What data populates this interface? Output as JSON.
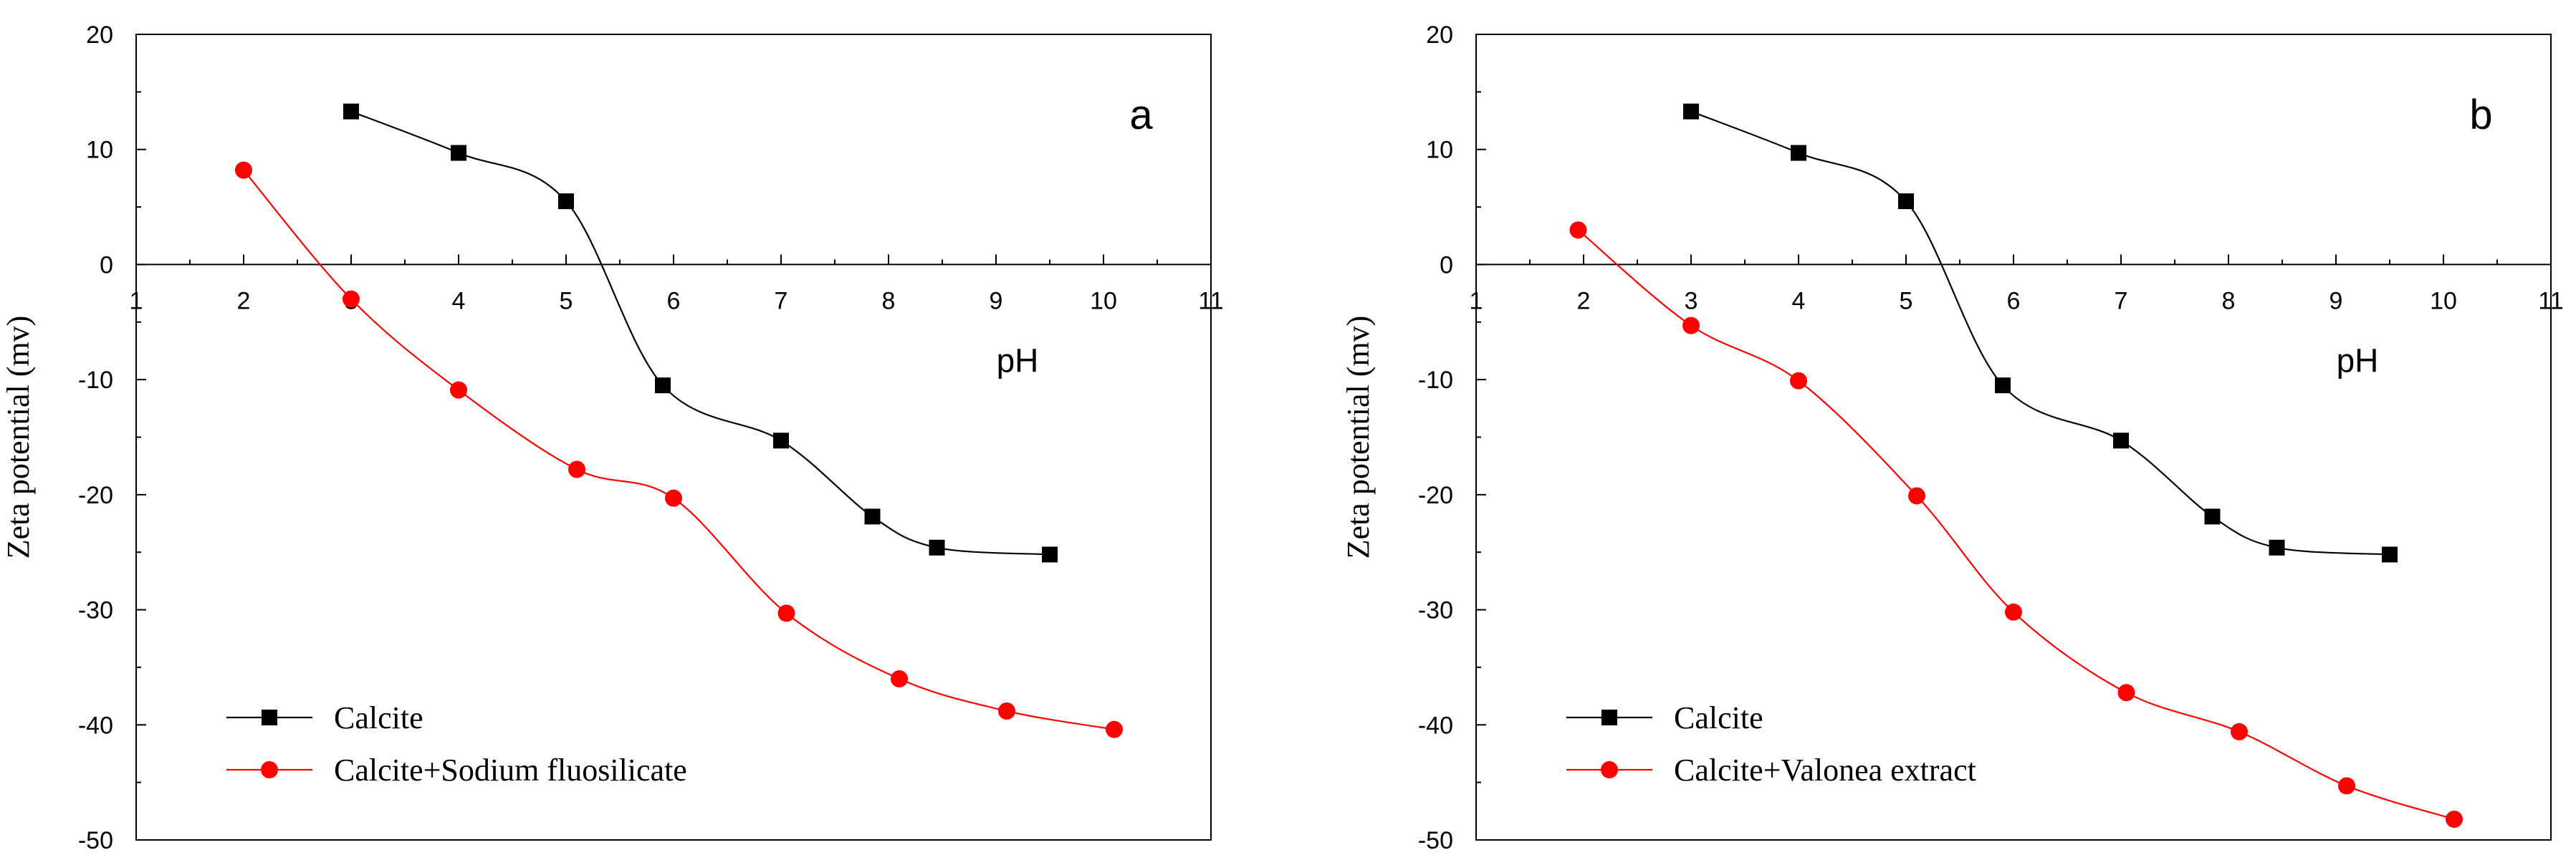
{
  "chart_data": [
    {
      "type": "line",
      "panel_label": "a",
      "xlabel": "pH",
      "ylabel": "Zeta potential (mv)",
      "xlim": [
        1,
        11
      ],
      "ylim": [
        -50,
        20
      ],
      "x_ticks": [
        "1",
        "2",
        "3",
        "4",
        "5",
        "6",
        "7",
        "8",
        "9",
        "10",
        "11"
      ],
      "y_ticks": [
        "20",
        "10",
        "0",
        "-10",
        "-20",
        "-30",
        "-40",
        "-50"
      ],
      "legend_position": "bottom-left",
      "series": [
        {
          "name": "Calcite",
          "color": "#000000",
          "marker": "square",
          "x": [
            3.0,
            4.0,
            5.0,
            5.9,
            7.0,
            7.85,
            8.45,
            9.5
          ],
          "y": [
            13.3,
            9.7,
            5.5,
            -10.5,
            -15.3,
            -21.9,
            -24.6,
            -25.2
          ]
        },
        {
          "name": "Calcite+Sodium fluosilicate",
          "color": "#ff0000",
          "marker": "circle",
          "x": [
            2.0,
            3.0,
            4.0,
            5.1,
            6.0,
            7.05,
            8.1,
            9.1,
            10.1
          ],
          "y": [
            8.2,
            -3.0,
            -10.9,
            -17.8,
            -20.3,
            -30.3,
            -36.0,
            -38.8,
            -40.4
          ]
        }
      ]
    },
    {
      "type": "line",
      "panel_label": "b",
      "xlabel": "pH",
      "ylabel": "Zeta potential (mv)",
      "xlim": [
        1,
        11
      ],
      "ylim": [
        -50,
        20
      ],
      "x_ticks": [
        "1",
        "2",
        "3",
        "4",
        "5",
        "6",
        "7",
        "8",
        "9",
        "10",
        "11"
      ],
      "y_ticks": [
        "20",
        "10",
        "0",
        "-10",
        "-20",
        "-30",
        "-40",
        "-50"
      ],
      "legend_position": "bottom-left",
      "series": [
        {
          "name": "Calcite",
          "color": "#000000",
          "marker": "square",
          "x": [
            3.0,
            4.0,
            5.0,
            5.9,
            7.0,
            7.85,
            8.45,
            9.5
          ],
          "y": [
            13.3,
            9.7,
            5.5,
            -10.5,
            -15.3,
            -21.9,
            -24.6,
            -25.2
          ]
        },
        {
          "name": "Calcite+Valonea extract",
          "color": "#ff0000",
          "marker": "circle",
          "x": [
            1.95,
            3.0,
            4.0,
            5.1,
            6.0,
            7.05,
            8.1,
            9.1,
            10.1
          ],
          "y": [
            3.0,
            -5.3,
            -10.1,
            -20.1,
            -30.2,
            -37.2,
            -40.6,
            -45.3,
            -48.2
          ]
        }
      ]
    }
  ]
}
